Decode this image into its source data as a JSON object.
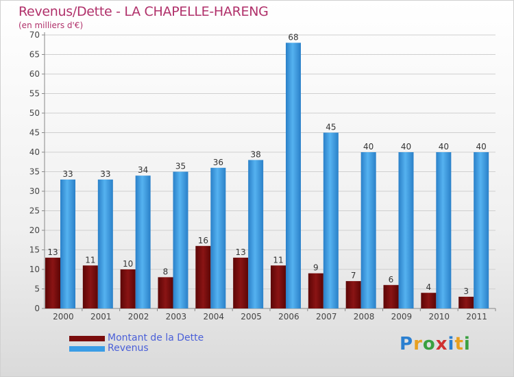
{
  "header": {
    "title": "Revenus/Dette - LA CHAPELLE-HARENG",
    "subtitle": "(en milliers d'€)"
  },
  "colors": {
    "dette": "#7a0c0c",
    "revenus": "#3a9de6",
    "title": "#b0306a",
    "legend_text": "#4a5fd8"
  },
  "chart_data": {
    "type": "bar",
    "categories": [
      "2000",
      "2001",
      "2002",
      "2003",
      "2004",
      "2005",
      "2006",
      "2007",
      "2008",
      "2009",
      "2010",
      "2011"
    ],
    "series": [
      {
        "name": "Montant de la Dette",
        "values": [
          13,
          11,
          10,
          8,
          16,
          13,
          11,
          9,
          7,
          6,
          4,
          3
        ]
      },
      {
        "name": "Revenus",
        "values": [
          33,
          33,
          34,
          35,
          36,
          38,
          68,
          45,
          40,
          40,
          40,
          40
        ]
      }
    ],
    "ylim": [
      0,
      70
    ],
    "yticks": [
      0,
      5,
      10,
      15,
      20,
      25,
      30,
      35,
      40,
      45,
      50,
      55,
      60,
      65,
      70
    ],
    "grid": true,
    "legend_position": "bottom-left"
  },
  "logo": {
    "letters": [
      "P",
      "r",
      "o",
      "x",
      "i",
      "t",
      "i"
    ],
    "colors": [
      "#2a7fd0",
      "#e8a020",
      "#3aa040",
      "#d03030",
      "#2a7fd0",
      "#e8a020",
      "#3aa040"
    ]
  }
}
